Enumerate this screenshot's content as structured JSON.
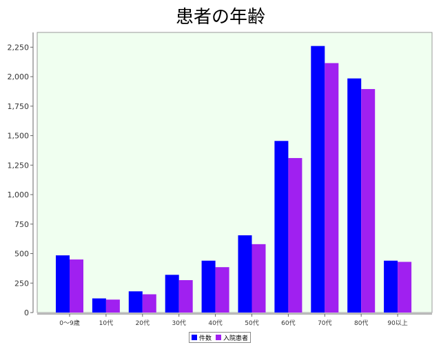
{
  "chart_data": {
    "type": "bar",
    "title": "患者の年齢",
    "xlabel": "",
    "ylabel": "",
    "categories": [
      "0〜9歳",
      "10代",
      "20代",
      "30代",
      "40代",
      "50代",
      "60代",
      "70代",
      "80代",
      "90以上"
    ],
    "series": [
      {
        "name": "件数",
        "color": "#0000ff",
        "values": [
          485,
          120,
          180,
          320,
          440,
          655,
          1455,
          2260,
          1985,
          440
        ]
      },
      {
        "name": "入院患者",
        "color": "#a020f0",
        "values": [
          450,
          110,
          155,
          275,
          385,
          580,
          1310,
          2115,
          1895,
          430
        ]
      }
    ],
    "ylim": [
      0,
      2375
    ],
    "yticks": [
      0,
      250,
      500,
      750,
      1000,
      1250,
      1500,
      1750,
      2000,
      2250
    ],
    "ytick_labels": [
      "0",
      "250",
      "500",
      "750",
      "1,000",
      "1,250",
      "1,500",
      "1,750",
      "2,000",
      "2,250"
    ],
    "grid": false,
    "plot_background": "#f0fff0",
    "legend_position": "bottom-center"
  }
}
